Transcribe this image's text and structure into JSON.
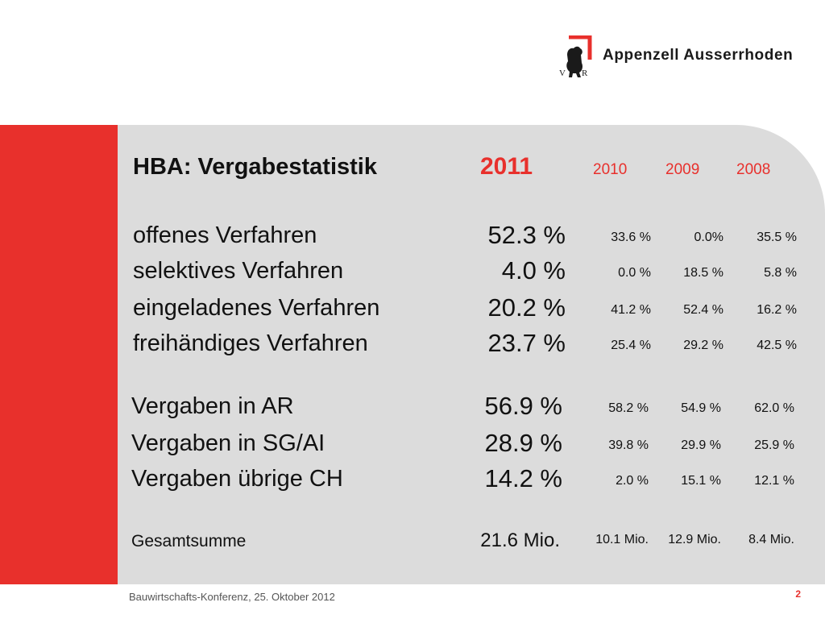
{
  "header": {
    "logo_text": "Appenzell Ausserrhoden",
    "emblem_letters": [
      "V",
      "R"
    ]
  },
  "colors": {
    "accent": "#e8302c",
    "panel": "#dcdcdc",
    "text": "#111111"
  },
  "slide": {
    "title": "HBA: Vergabestatistik",
    "years": {
      "current": "2011",
      "previous": [
        "2010",
        "2009",
        "2008"
      ]
    },
    "procedures": [
      {
        "label": "offenes Verfahren",
        "current": "52.3 %",
        "previous": [
          "33.6 %",
          "0.0%",
          "35.5 %"
        ]
      },
      {
        "label": "selektives Verfahren",
        "current": "4.0 %",
        "previous": [
          "0.0 %",
          "18.5 %",
          "5.8 %"
        ]
      },
      {
        "label": "eingeladenes Verfahren",
        "current": "20.2 %",
        "previous": [
          "41.2 %",
          "52.4 %",
          "16.2 %"
        ]
      },
      {
        "label": "freihändiges Verfahren",
        "current": "23.7 %",
        "previous": [
          "25.4 %",
          "29.2 %",
          "42.5 %"
        ]
      }
    ],
    "regions": [
      {
        "label": "Vergaben in AR",
        "current": "56.9 %",
        "previous": [
          "58.2 %",
          "54.9 %",
          "62.0 %"
        ]
      },
      {
        "label": "Vergaben in SG/AI",
        "current": "28.9 %",
        "previous": [
          "39.8 %",
          "29.9 %",
          "25.9 %"
        ]
      },
      {
        "label": "Vergaben übrige CH",
        "current": "14.2 %",
        "previous": [
          "2.0 %",
          "15.1 %",
          "12.1 %"
        ]
      }
    ],
    "total": {
      "label": "Gesamtsumme",
      "current": "21.6 Mio.",
      "previous": [
        "10.1 Mio.",
        "12.9 Mio.",
        "8.4 Mio."
      ]
    }
  },
  "footer": {
    "text": "Bauwirtschafts-Konferenz, 25. Oktober 2012",
    "page": "2"
  }
}
